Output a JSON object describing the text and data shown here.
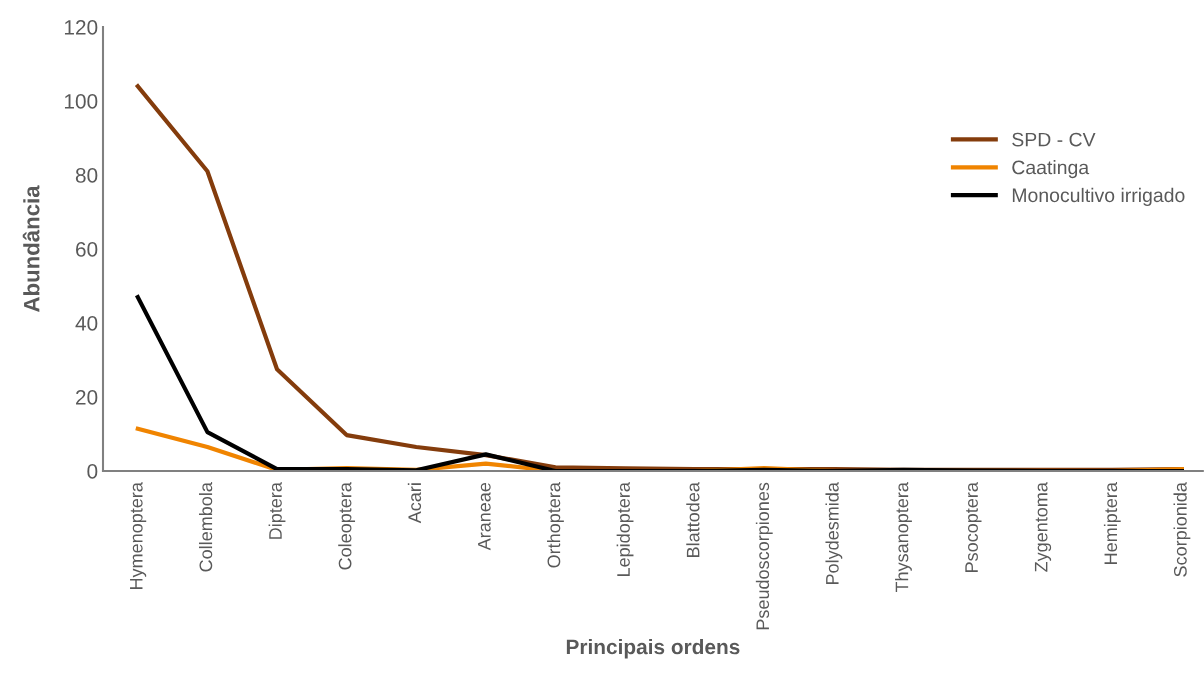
{
  "chart_data": {
    "type": "line",
    "xlabel": "Principais ordens",
    "ylabel": "Abundância",
    "categories": [
      "Hymenoptera",
      "Collembola",
      "Diptera",
      "Coleoptera",
      "Acari",
      "Araneae",
      "Orthoptera",
      "Lepidoptera",
      "Blattodea",
      "Pseudoscorpiones",
      "Polydesmida",
      "Thysanoptera",
      "Psocoptera",
      "Zygentoma",
      "Hemiptera",
      "Scorpionida"
    ],
    "series": [
      {
        "name": "SPD - CV",
        "color": "#843c0c",
        "values": [
          104,
          81,
          27.5,
          9.7,
          6.5,
          4.3,
          1,
          0.7,
          0.5,
          0.5,
          0.5,
          0.3,
          0.3,
          0.3,
          0.3,
          0.5
        ]
      },
      {
        "name": "Caatinga",
        "color": "#f08400",
        "values": [
          11.4,
          6.5,
          0.3,
          0.8,
          0.3,
          2,
          0,
          0,
          0,
          0.8,
          0,
          0,
          0,
          0,
          0,
          0.5
        ]
      },
      {
        "name": "Monocultivo irrigado",
        "color": "#000000",
        "values": [
          47,
          10.5,
          0.5,
          0.5,
          0.2,
          4.5,
          0,
          0,
          0,
          0.3,
          0,
          0.3,
          0.1,
          0,
          0,
          0
        ]
      }
    ],
    "ylim": [
      0,
      120
    ],
    "yticks": [
      0,
      20,
      40,
      60,
      80,
      100,
      120
    ],
    "grid": false,
    "legend": "right",
    "marker": "none",
    "line_style": "solid"
  }
}
